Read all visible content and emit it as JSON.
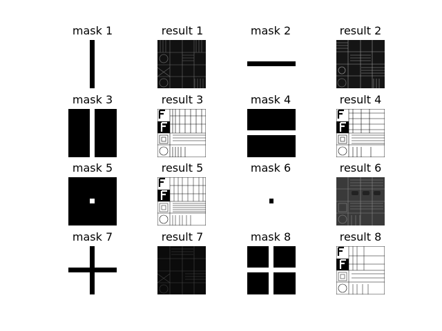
{
  "figure": {
    "background": "#ffffff",
    "panels": [
      {
        "title": "mask 1",
        "kind": "mask",
        "mask": "vbar"
      },
      {
        "title": "result 1",
        "kind": "result",
        "variant": "dark-texture-a"
      },
      {
        "title": "mask 2",
        "kind": "mask",
        "mask": "hbar"
      },
      {
        "title": "result 2",
        "kind": "result",
        "variant": "dark-texture-b"
      },
      {
        "title": "mask 3",
        "kind": "mask",
        "mask": "black-with-white-vline"
      },
      {
        "title": "result 3",
        "kind": "result",
        "variant": "line-art"
      },
      {
        "title": "mask 4",
        "kind": "mask",
        "mask": "black-with-white-hline"
      },
      {
        "title": "result 4",
        "kind": "result",
        "variant": "line-art-h"
      },
      {
        "title": "mask 5",
        "kind": "mask",
        "mask": "black-with-white-dot"
      },
      {
        "title": "result 5",
        "kind": "result",
        "variant": "line-art-fine"
      },
      {
        "title": "mask 6",
        "kind": "mask",
        "mask": "dot"
      },
      {
        "title": "result 6",
        "kind": "result",
        "variant": "gray-texture"
      },
      {
        "title": "mask 7",
        "kind": "mask",
        "mask": "cross"
      },
      {
        "title": "result 7",
        "kind": "result",
        "variant": "very-dark"
      },
      {
        "title": "mask 8",
        "kind": "mask",
        "mask": "black-with-white-cross"
      },
      {
        "title": "result 8",
        "kind": "result",
        "variant": "line-art-sparse"
      }
    ]
  }
}
